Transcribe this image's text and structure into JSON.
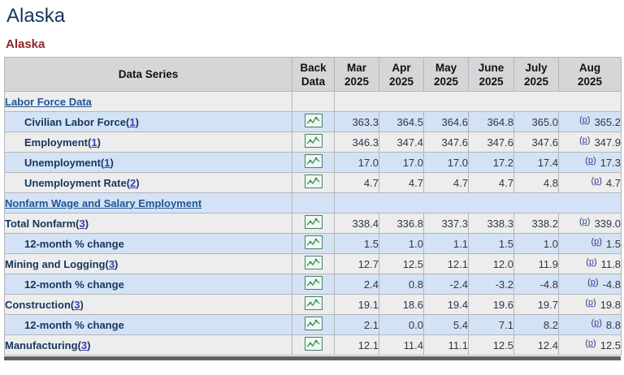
{
  "page": {
    "title": "Alaska",
    "subtitle": "Alaska"
  },
  "table": {
    "columns": {
      "data_series": "Data Series",
      "back_data": "Back Data"
    },
    "months": [
      "Mar 2025",
      "Apr 2025",
      "May 2025",
      "June 2025",
      "July 2025",
      "Aug 2025"
    ],
    "preliminary_marker": "p",
    "icon": "sparkline-chart-icon",
    "rows": [
      {
        "type": "section",
        "label": "Labor Force Data"
      },
      {
        "type": "data",
        "label": "Civilian Labor Force",
        "footnote": "1",
        "indent": true,
        "values": [
          "363.3",
          "364.5",
          "364.6",
          "364.8",
          "365.0",
          "365.2"
        ],
        "p_on_last": true
      },
      {
        "type": "data",
        "label": "Employment",
        "footnote": "1",
        "indent": true,
        "values": [
          "346.3",
          "347.4",
          "347.6",
          "347.6",
          "347.6",
          "347.9"
        ],
        "p_on_last": true
      },
      {
        "type": "data",
        "label": "Unemployment",
        "footnote": "1",
        "indent": true,
        "values": [
          "17.0",
          "17.0",
          "17.0",
          "17.2",
          "17.4",
          "17.3"
        ],
        "p_on_last": true
      },
      {
        "type": "data",
        "label": "Unemployment Rate",
        "footnote": "2",
        "indent": true,
        "values": [
          "4.7",
          "4.7",
          "4.7",
          "4.7",
          "4.8",
          "4.7"
        ],
        "p_on_last": true
      },
      {
        "type": "section",
        "label": "Nonfarm Wage and Salary Employment"
      },
      {
        "type": "data",
        "label": "Total Nonfarm",
        "footnote": "3",
        "indent": false,
        "values": [
          "338.4",
          "336.8",
          "337.3",
          "338.3",
          "338.2",
          "339.0"
        ],
        "p_on_last": true
      },
      {
        "type": "data",
        "label": "12-month % change",
        "indent": true,
        "values": [
          "1.5",
          "1.0",
          "1.1",
          "1.5",
          "1.0",
          "1.5"
        ],
        "p_on_last": true
      },
      {
        "type": "data",
        "label": "Mining and Logging",
        "footnote": "3",
        "indent": false,
        "values": [
          "12.7",
          "12.5",
          "12.1",
          "12.0",
          "11.9",
          "11.8"
        ],
        "p_on_last": true
      },
      {
        "type": "data",
        "label": "12-month % change",
        "indent": true,
        "values": [
          "2.4",
          "0.8",
          "-2.4",
          "-3.2",
          "-4.8",
          "-4.8"
        ],
        "p_on_last": true
      },
      {
        "type": "data",
        "label": "Construction",
        "footnote": "3",
        "indent": false,
        "values": [
          "19.1",
          "18.6",
          "19.4",
          "19.6",
          "19.7",
          "19.8"
        ],
        "p_on_last": true
      },
      {
        "type": "data",
        "label": "12-month % change",
        "indent": true,
        "values": [
          "2.1",
          "0.0",
          "5.4",
          "7.1",
          "8.2",
          "8.8"
        ],
        "p_on_last": true
      },
      {
        "type": "data",
        "label": "Manufacturing",
        "footnote": "3",
        "indent": false,
        "values": [
          "12.1",
          "11.4",
          "11.1",
          "12.5",
          "12.4",
          "12.5"
        ],
        "p_on_last": true
      }
    ]
  },
  "colors": {
    "row_blue": "#d3e3f5",
    "row_gray": "#ededee",
    "header_bg": "#d5d6d8",
    "title_navy": "#17365d",
    "subtitle_red": "#8f2629",
    "footnote_link_blue": "#3c3cba",
    "section_link_blue": "#1f5596",
    "icon_green": "#3a9a57"
  }
}
